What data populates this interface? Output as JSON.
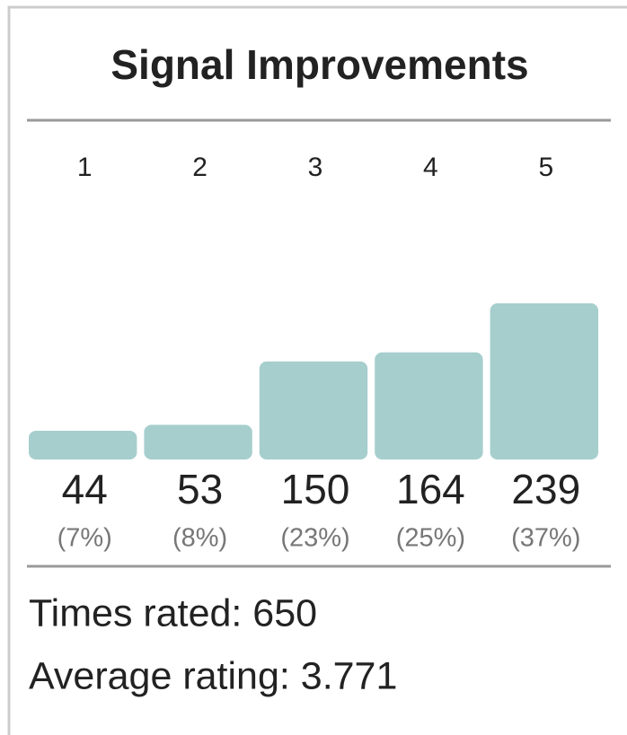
{
  "title": "Signal Improvements",
  "ratings": [
    {
      "label": "1",
      "count": 44,
      "percent": "(7%)"
    },
    {
      "label": "2",
      "count": 53,
      "percent": "(8%)"
    },
    {
      "label": "3",
      "count": 150,
      "percent": "(23%)"
    },
    {
      "label": "4",
      "count": 164,
      "percent": "(25%)"
    },
    {
      "label": "5",
      "count": 239,
      "percent": "(37%)"
    }
  ],
  "summary": [
    "Times rated: 650",
    "Average rating: 3.771"
  ],
  "bar_color": "#a6cecd"
}
